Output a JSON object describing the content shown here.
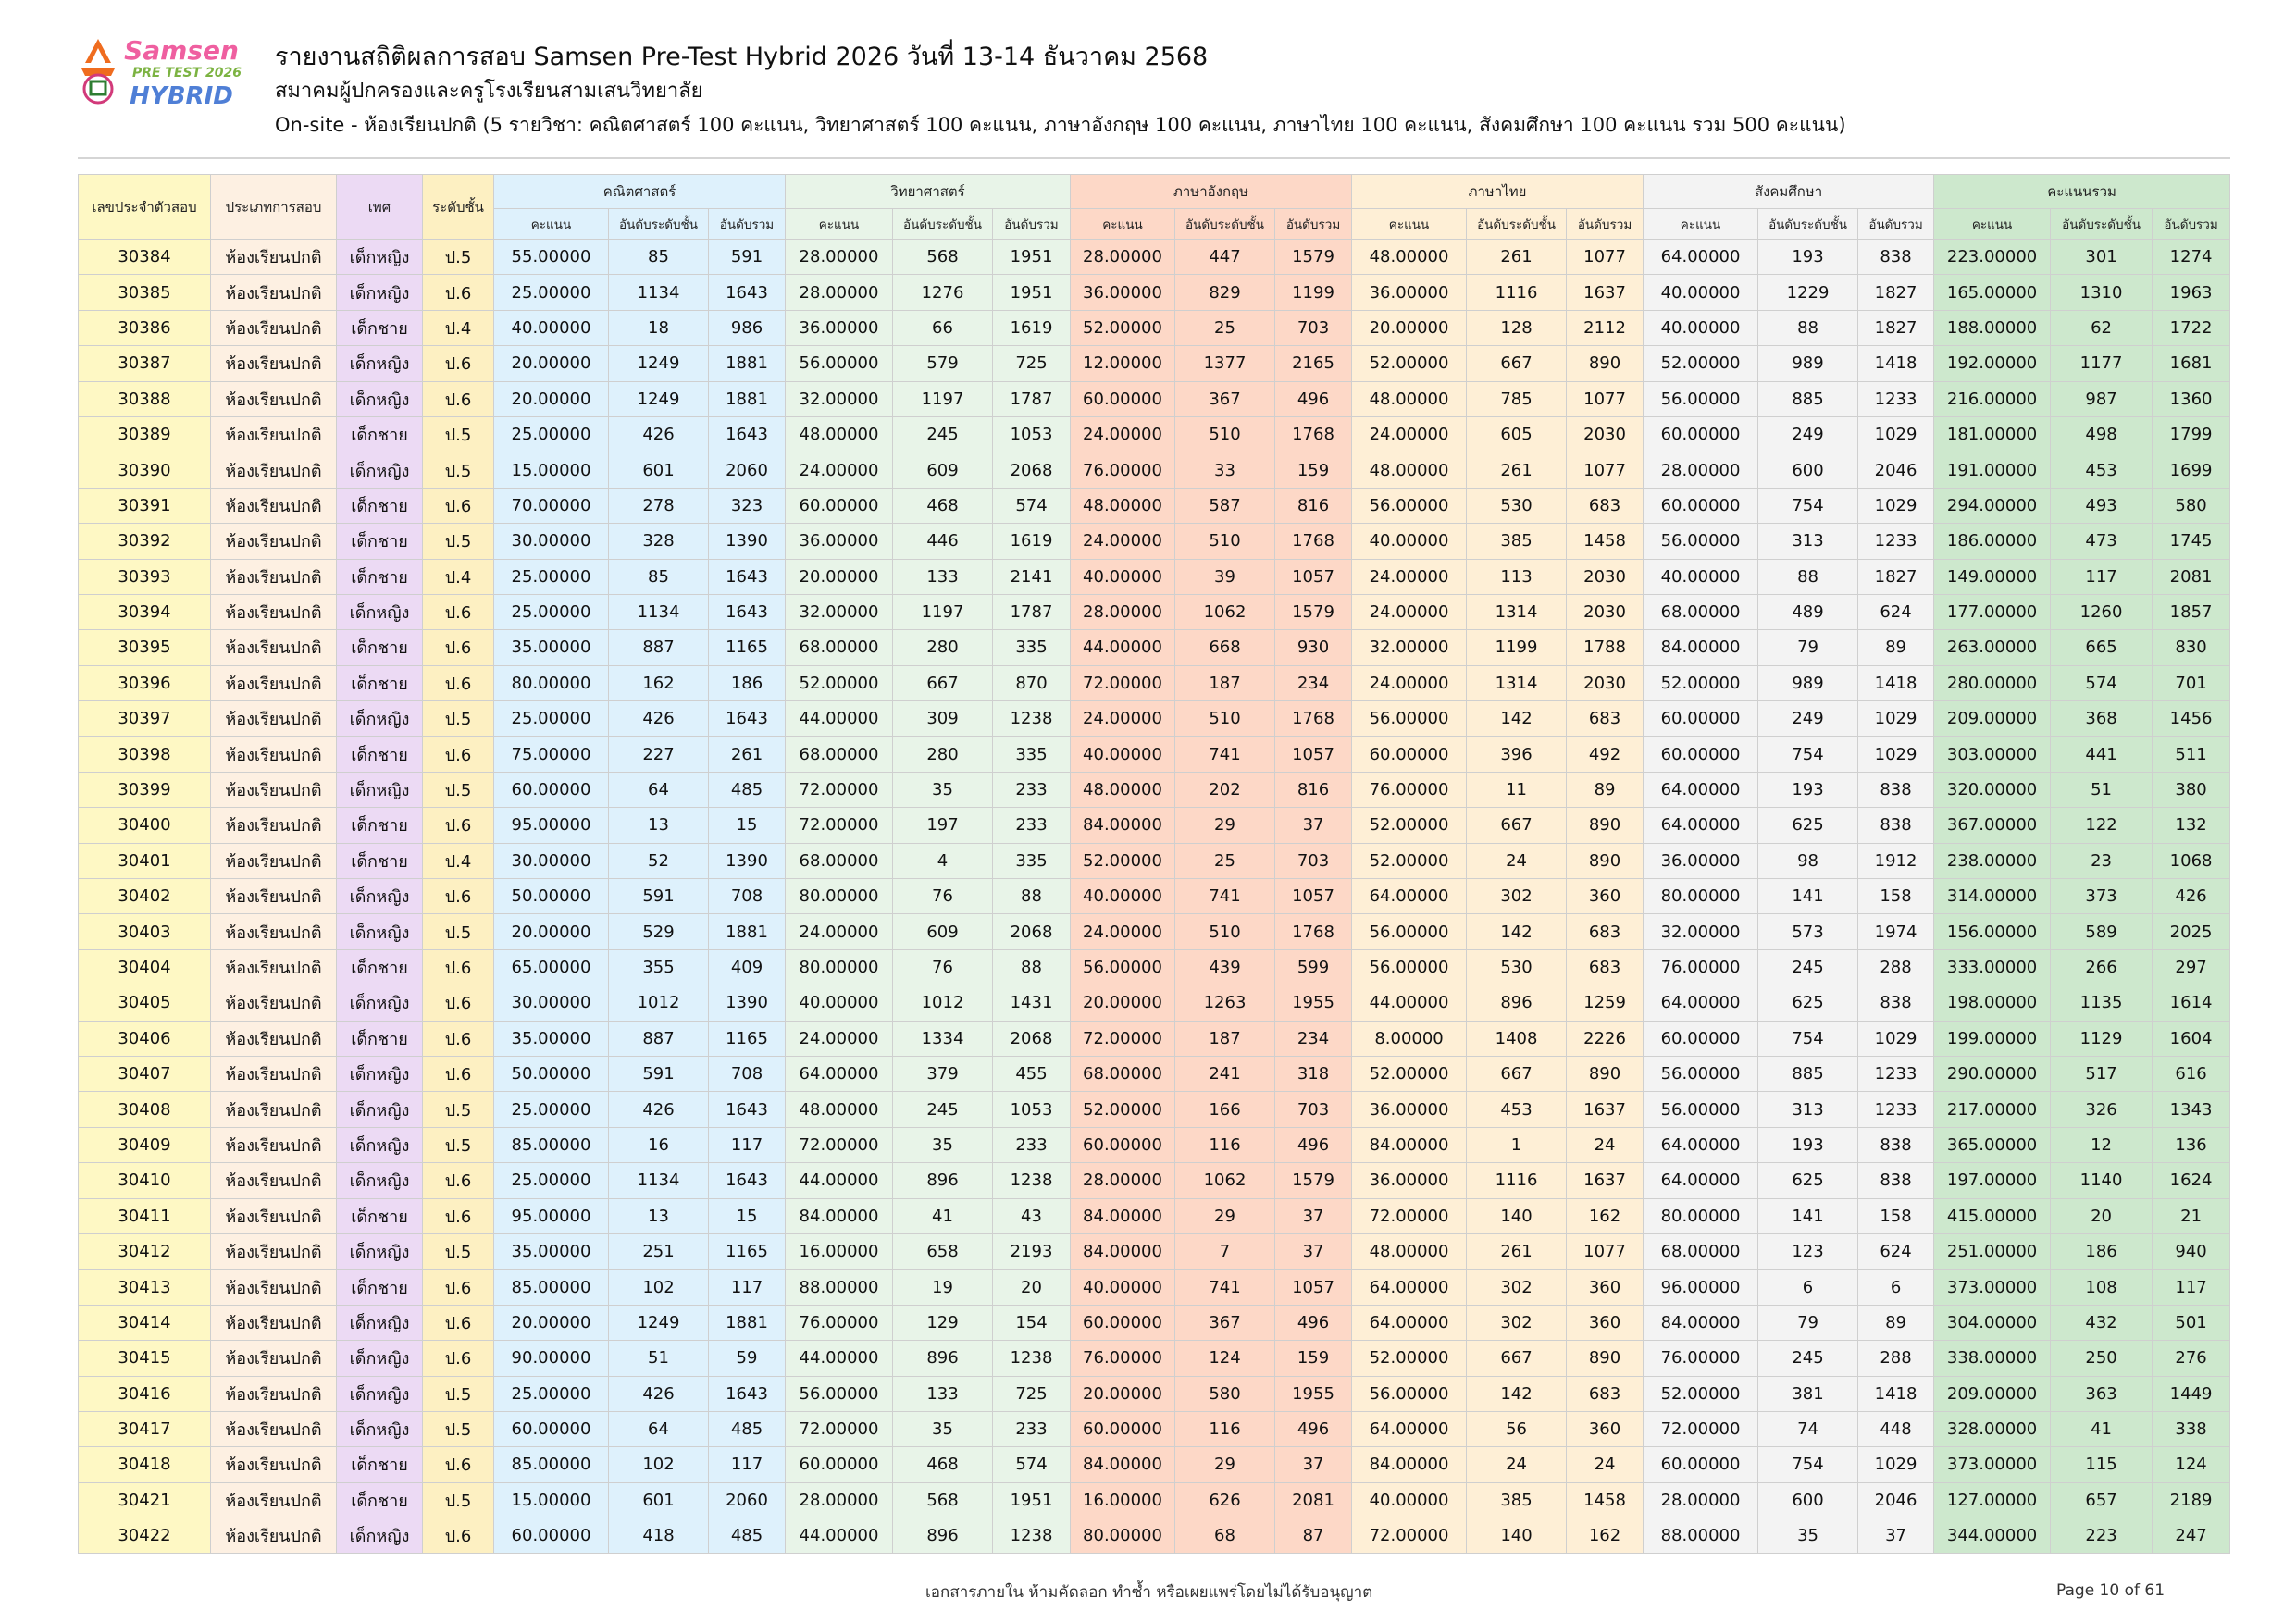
{
  "logo": {
    "line1": "Samsen",
    "line2": "PRE TEST 2026",
    "line3": "HYBRID"
  },
  "header": {
    "title": "รายงานสถิติผลการสอบ Samsen Pre-Test Hybrid 2026 วันที่ 13-14 ธันวาคม 2568",
    "org": "สมาคมผู้ปกครองและครูโรงเรียนสามเสนวิทยาลัย",
    "subtitle": "On-site - ห้องเรียนปกติ (5 รายวิชา: คณิตศาสตร์ 100 คะแนน, วิทยาศาสตร์ 100 คะแนน, ภาษาอังกฤษ 100 คะแนน, ภาษาไทย 100 คะแนน, สังคมศึกษา 100 คะแนน รวม 500 คะแนน)"
  },
  "table": {
    "columns": {
      "id": "เลขประจำตัวสอบ",
      "type": "ประเภทการสอบ",
      "gender": "เพศ",
      "level": "ระดับชั้น"
    },
    "groups": [
      "คณิตศาสตร์",
      "วิทยาศาสตร์",
      "ภาษาอังกฤษ",
      "ภาษาไทย",
      "สังคมศึกษา",
      "คะแนนรวม"
    ],
    "sub": {
      "score": "คะแนน",
      "level_rank": "อันดับระดับชั้น",
      "overall_rank": "อันดับรวม"
    },
    "colors": {
      "id": "#fef8c4",
      "type": "#fdf0e2",
      "gender": "#ecdaf4",
      "level": "#fdf0c2",
      "math": "#def1fc",
      "science": "#e8f4e8",
      "english": "#fdd8c7",
      "thai": "#feefd6",
      "social": "#f3f3f3",
      "total": "#cde8cd"
    },
    "rows": [
      [
        "30384",
        "ห้องเรียนปกติ",
        "เด็กหญิง",
        "ป.5",
        "55.00000",
        "85",
        "591",
        "28.00000",
        "568",
        "1951",
        "28.00000",
        "447",
        "1579",
        "48.00000",
        "261",
        "1077",
        "64.00000",
        "193",
        "838",
        "223.00000",
        "301",
        "1274"
      ],
      [
        "30385",
        "ห้องเรียนปกติ",
        "เด็กหญิง",
        "ป.6",
        "25.00000",
        "1134",
        "1643",
        "28.00000",
        "1276",
        "1951",
        "36.00000",
        "829",
        "1199",
        "36.00000",
        "1116",
        "1637",
        "40.00000",
        "1229",
        "1827",
        "165.00000",
        "1310",
        "1963"
      ],
      [
        "30386",
        "ห้องเรียนปกติ",
        "เด็กชาย",
        "ป.4",
        "40.00000",
        "18",
        "986",
        "36.00000",
        "66",
        "1619",
        "52.00000",
        "25",
        "703",
        "20.00000",
        "128",
        "2112",
        "40.00000",
        "88",
        "1827",
        "188.00000",
        "62",
        "1722"
      ],
      [
        "30387",
        "ห้องเรียนปกติ",
        "เด็กหญิง",
        "ป.6",
        "20.00000",
        "1249",
        "1881",
        "56.00000",
        "579",
        "725",
        "12.00000",
        "1377",
        "2165",
        "52.00000",
        "667",
        "890",
        "52.00000",
        "989",
        "1418",
        "192.00000",
        "1177",
        "1681"
      ],
      [
        "30388",
        "ห้องเรียนปกติ",
        "เด็กหญิง",
        "ป.6",
        "20.00000",
        "1249",
        "1881",
        "32.00000",
        "1197",
        "1787",
        "60.00000",
        "367",
        "496",
        "48.00000",
        "785",
        "1077",
        "56.00000",
        "885",
        "1233",
        "216.00000",
        "987",
        "1360"
      ],
      [
        "30389",
        "ห้องเรียนปกติ",
        "เด็กชาย",
        "ป.5",
        "25.00000",
        "426",
        "1643",
        "48.00000",
        "245",
        "1053",
        "24.00000",
        "510",
        "1768",
        "24.00000",
        "605",
        "2030",
        "60.00000",
        "249",
        "1029",
        "181.00000",
        "498",
        "1799"
      ],
      [
        "30390",
        "ห้องเรียนปกติ",
        "เด็กหญิง",
        "ป.5",
        "15.00000",
        "601",
        "2060",
        "24.00000",
        "609",
        "2068",
        "76.00000",
        "33",
        "159",
        "48.00000",
        "261",
        "1077",
        "28.00000",
        "600",
        "2046",
        "191.00000",
        "453",
        "1699"
      ],
      [
        "30391",
        "ห้องเรียนปกติ",
        "เด็กชาย",
        "ป.6",
        "70.00000",
        "278",
        "323",
        "60.00000",
        "468",
        "574",
        "48.00000",
        "587",
        "816",
        "56.00000",
        "530",
        "683",
        "60.00000",
        "754",
        "1029",
        "294.00000",
        "493",
        "580"
      ],
      [
        "30392",
        "ห้องเรียนปกติ",
        "เด็กชาย",
        "ป.5",
        "30.00000",
        "328",
        "1390",
        "36.00000",
        "446",
        "1619",
        "24.00000",
        "510",
        "1768",
        "40.00000",
        "385",
        "1458",
        "56.00000",
        "313",
        "1233",
        "186.00000",
        "473",
        "1745"
      ],
      [
        "30393",
        "ห้องเรียนปกติ",
        "เด็กชาย",
        "ป.4",
        "25.00000",
        "85",
        "1643",
        "20.00000",
        "133",
        "2141",
        "40.00000",
        "39",
        "1057",
        "24.00000",
        "113",
        "2030",
        "40.00000",
        "88",
        "1827",
        "149.00000",
        "117",
        "2081"
      ],
      [
        "30394",
        "ห้องเรียนปกติ",
        "เด็กหญิง",
        "ป.6",
        "25.00000",
        "1134",
        "1643",
        "32.00000",
        "1197",
        "1787",
        "28.00000",
        "1062",
        "1579",
        "24.00000",
        "1314",
        "2030",
        "68.00000",
        "489",
        "624",
        "177.00000",
        "1260",
        "1857"
      ],
      [
        "30395",
        "ห้องเรียนปกติ",
        "เด็กชาย",
        "ป.6",
        "35.00000",
        "887",
        "1165",
        "68.00000",
        "280",
        "335",
        "44.00000",
        "668",
        "930",
        "32.00000",
        "1199",
        "1788",
        "84.00000",
        "79",
        "89",
        "263.00000",
        "665",
        "830"
      ],
      [
        "30396",
        "ห้องเรียนปกติ",
        "เด็กชาย",
        "ป.6",
        "80.00000",
        "162",
        "186",
        "52.00000",
        "667",
        "870",
        "72.00000",
        "187",
        "234",
        "24.00000",
        "1314",
        "2030",
        "52.00000",
        "989",
        "1418",
        "280.00000",
        "574",
        "701"
      ],
      [
        "30397",
        "ห้องเรียนปกติ",
        "เด็กหญิง",
        "ป.5",
        "25.00000",
        "426",
        "1643",
        "44.00000",
        "309",
        "1238",
        "24.00000",
        "510",
        "1768",
        "56.00000",
        "142",
        "683",
        "60.00000",
        "249",
        "1029",
        "209.00000",
        "368",
        "1456"
      ],
      [
        "30398",
        "ห้องเรียนปกติ",
        "เด็กชาย",
        "ป.6",
        "75.00000",
        "227",
        "261",
        "68.00000",
        "280",
        "335",
        "40.00000",
        "741",
        "1057",
        "60.00000",
        "396",
        "492",
        "60.00000",
        "754",
        "1029",
        "303.00000",
        "441",
        "511"
      ],
      [
        "30399",
        "ห้องเรียนปกติ",
        "เด็กหญิง",
        "ป.5",
        "60.00000",
        "64",
        "485",
        "72.00000",
        "35",
        "233",
        "48.00000",
        "202",
        "816",
        "76.00000",
        "11",
        "89",
        "64.00000",
        "193",
        "838",
        "320.00000",
        "51",
        "380"
      ],
      [
        "30400",
        "ห้องเรียนปกติ",
        "เด็กชาย",
        "ป.6",
        "95.00000",
        "13",
        "15",
        "72.00000",
        "197",
        "233",
        "84.00000",
        "29",
        "37",
        "52.00000",
        "667",
        "890",
        "64.00000",
        "625",
        "838",
        "367.00000",
        "122",
        "132"
      ],
      [
        "30401",
        "ห้องเรียนปกติ",
        "เด็กชาย",
        "ป.4",
        "30.00000",
        "52",
        "1390",
        "68.00000",
        "4",
        "335",
        "52.00000",
        "25",
        "703",
        "52.00000",
        "24",
        "890",
        "36.00000",
        "98",
        "1912",
        "238.00000",
        "23",
        "1068"
      ],
      [
        "30402",
        "ห้องเรียนปกติ",
        "เด็กหญิง",
        "ป.6",
        "50.00000",
        "591",
        "708",
        "80.00000",
        "76",
        "88",
        "40.00000",
        "741",
        "1057",
        "64.00000",
        "302",
        "360",
        "80.00000",
        "141",
        "158",
        "314.00000",
        "373",
        "426"
      ],
      [
        "30403",
        "ห้องเรียนปกติ",
        "เด็กหญิง",
        "ป.5",
        "20.00000",
        "529",
        "1881",
        "24.00000",
        "609",
        "2068",
        "24.00000",
        "510",
        "1768",
        "56.00000",
        "142",
        "683",
        "32.00000",
        "573",
        "1974",
        "156.00000",
        "589",
        "2025"
      ],
      [
        "30404",
        "ห้องเรียนปกติ",
        "เด็กชาย",
        "ป.6",
        "65.00000",
        "355",
        "409",
        "80.00000",
        "76",
        "88",
        "56.00000",
        "439",
        "599",
        "56.00000",
        "530",
        "683",
        "76.00000",
        "245",
        "288",
        "333.00000",
        "266",
        "297"
      ],
      [
        "30405",
        "ห้องเรียนปกติ",
        "เด็กหญิง",
        "ป.6",
        "30.00000",
        "1012",
        "1390",
        "40.00000",
        "1012",
        "1431",
        "20.00000",
        "1263",
        "1955",
        "44.00000",
        "896",
        "1259",
        "64.00000",
        "625",
        "838",
        "198.00000",
        "1135",
        "1614"
      ],
      [
        "30406",
        "ห้องเรียนปกติ",
        "เด็กชาย",
        "ป.6",
        "35.00000",
        "887",
        "1165",
        "24.00000",
        "1334",
        "2068",
        "72.00000",
        "187",
        "234",
        "8.00000",
        "1408",
        "2226",
        "60.00000",
        "754",
        "1029",
        "199.00000",
        "1129",
        "1604"
      ],
      [
        "30407",
        "ห้องเรียนปกติ",
        "เด็กหญิง",
        "ป.6",
        "50.00000",
        "591",
        "708",
        "64.00000",
        "379",
        "455",
        "68.00000",
        "241",
        "318",
        "52.00000",
        "667",
        "890",
        "56.00000",
        "885",
        "1233",
        "290.00000",
        "517",
        "616"
      ],
      [
        "30408",
        "ห้องเรียนปกติ",
        "เด็กหญิง",
        "ป.5",
        "25.00000",
        "426",
        "1643",
        "48.00000",
        "245",
        "1053",
        "52.00000",
        "166",
        "703",
        "36.00000",
        "453",
        "1637",
        "56.00000",
        "313",
        "1233",
        "217.00000",
        "326",
        "1343"
      ],
      [
        "30409",
        "ห้องเรียนปกติ",
        "เด็กหญิง",
        "ป.5",
        "85.00000",
        "16",
        "117",
        "72.00000",
        "35",
        "233",
        "60.00000",
        "116",
        "496",
        "84.00000",
        "1",
        "24",
        "64.00000",
        "193",
        "838",
        "365.00000",
        "12",
        "136"
      ],
      [
        "30410",
        "ห้องเรียนปกติ",
        "เด็กหญิง",
        "ป.6",
        "25.00000",
        "1134",
        "1643",
        "44.00000",
        "896",
        "1238",
        "28.00000",
        "1062",
        "1579",
        "36.00000",
        "1116",
        "1637",
        "64.00000",
        "625",
        "838",
        "197.00000",
        "1140",
        "1624"
      ],
      [
        "30411",
        "ห้องเรียนปกติ",
        "เด็กชาย",
        "ป.6",
        "95.00000",
        "13",
        "15",
        "84.00000",
        "41",
        "43",
        "84.00000",
        "29",
        "37",
        "72.00000",
        "140",
        "162",
        "80.00000",
        "141",
        "158",
        "415.00000",
        "20",
        "21"
      ],
      [
        "30412",
        "ห้องเรียนปกติ",
        "เด็กหญิง",
        "ป.5",
        "35.00000",
        "251",
        "1165",
        "16.00000",
        "658",
        "2193",
        "84.00000",
        "7",
        "37",
        "48.00000",
        "261",
        "1077",
        "68.00000",
        "123",
        "624",
        "251.00000",
        "186",
        "940"
      ],
      [
        "30413",
        "ห้องเรียนปกติ",
        "เด็กชาย",
        "ป.6",
        "85.00000",
        "102",
        "117",
        "88.00000",
        "19",
        "20",
        "40.00000",
        "741",
        "1057",
        "64.00000",
        "302",
        "360",
        "96.00000",
        "6",
        "6",
        "373.00000",
        "108",
        "117"
      ],
      [
        "30414",
        "ห้องเรียนปกติ",
        "เด็กหญิง",
        "ป.6",
        "20.00000",
        "1249",
        "1881",
        "76.00000",
        "129",
        "154",
        "60.00000",
        "367",
        "496",
        "64.00000",
        "302",
        "360",
        "84.00000",
        "79",
        "89",
        "304.00000",
        "432",
        "501"
      ],
      [
        "30415",
        "ห้องเรียนปกติ",
        "เด็กหญิง",
        "ป.6",
        "90.00000",
        "51",
        "59",
        "44.00000",
        "896",
        "1238",
        "76.00000",
        "124",
        "159",
        "52.00000",
        "667",
        "890",
        "76.00000",
        "245",
        "288",
        "338.00000",
        "250",
        "276"
      ],
      [
        "30416",
        "ห้องเรียนปกติ",
        "เด็กหญิง",
        "ป.5",
        "25.00000",
        "426",
        "1643",
        "56.00000",
        "133",
        "725",
        "20.00000",
        "580",
        "1955",
        "56.00000",
        "142",
        "683",
        "52.00000",
        "381",
        "1418",
        "209.00000",
        "363",
        "1449"
      ],
      [
        "30417",
        "ห้องเรียนปกติ",
        "เด็กหญิง",
        "ป.5",
        "60.00000",
        "64",
        "485",
        "72.00000",
        "35",
        "233",
        "60.00000",
        "116",
        "496",
        "64.00000",
        "56",
        "360",
        "72.00000",
        "74",
        "448",
        "328.00000",
        "41",
        "338"
      ],
      [
        "30418",
        "ห้องเรียนปกติ",
        "เด็กชาย",
        "ป.6",
        "85.00000",
        "102",
        "117",
        "60.00000",
        "468",
        "574",
        "84.00000",
        "29",
        "37",
        "84.00000",
        "24",
        "24",
        "60.00000",
        "754",
        "1029",
        "373.00000",
        "115",
        "124"
      ],
      [
        "30421",
        "ห้องเรียนปกติ",
        "เด็กชาย",
        "ป.5",
        "15.00000",
        "601",
        "2060",
        "28.00000",
        "568",
        "1951",
        "16.00000",
        "626",
        "2081",
        "40.00000",
        "385",
        "1458",
        "28.00000",
        "600",
        "2046",
        "127.00000",
        "657",
        "2189"
      ],
      [
        "30422",
        "ห้องเรียนปกติ",
        "เด็กหญิง",
        "ป.6",
        "60.00000",
        "418",
        "485",
        "44.00000",
        "896",
        "1238",
        "80.00000",
        "68",
        "87",
        "72.00000",
        "140",
        "162",
        "88.00000",
        "35",
        "37",
        "344.00000",
        "223",
        "247"
      ]
    ]
  },
  "footer": {
    "notice": "เอกสารภายใน ห้ามคัดลอก ทำซ้ำ หรือเผยแพร่โดยไม่ได้รับอนุญาต",
    "page": "Page 10 of 61"
  }
}
